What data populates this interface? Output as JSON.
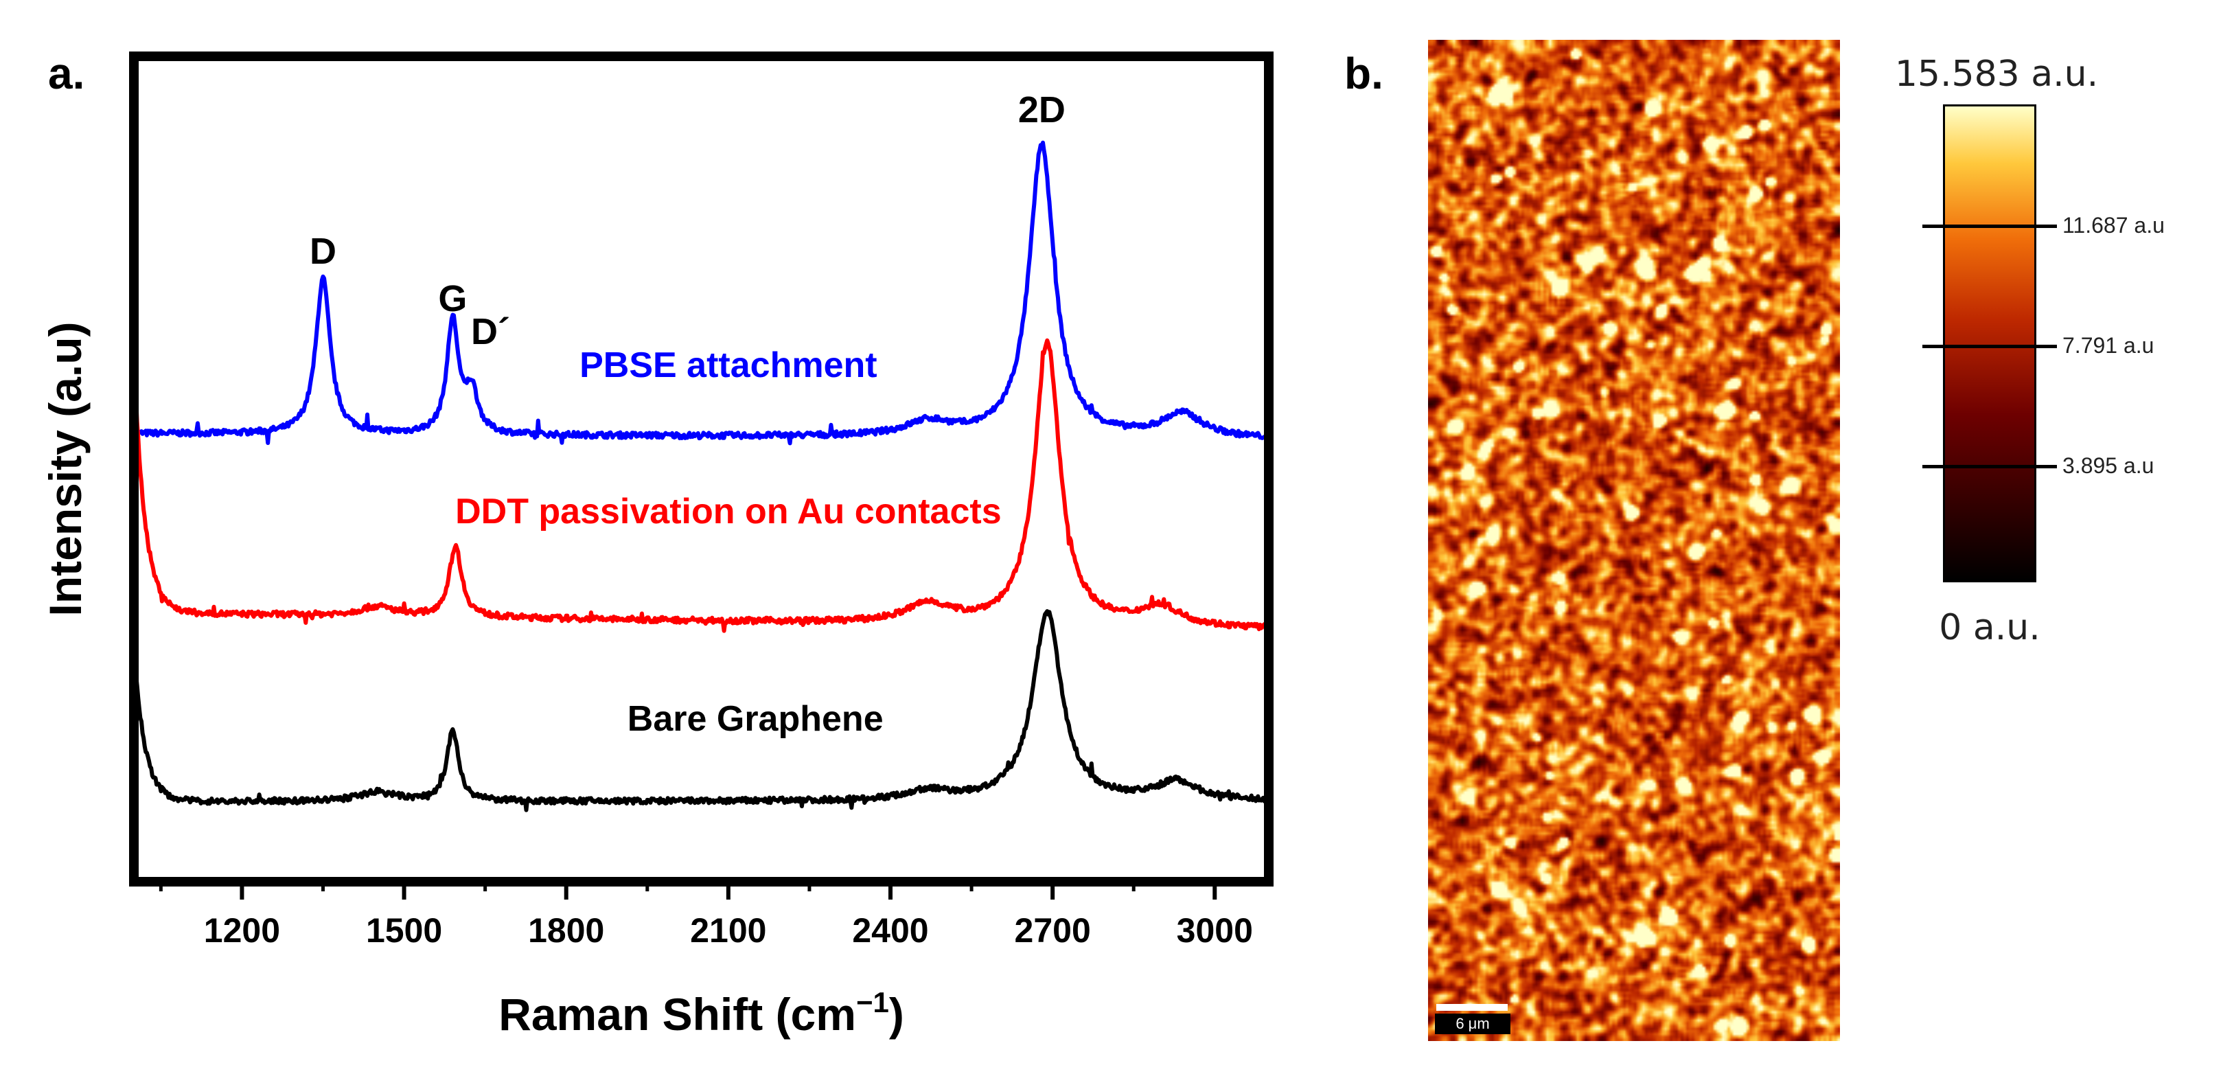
{
  "panels": {
    "a": "a.",
    "b": "b."
  },
  "chart_data": {
    "type": "line",
    "ylabel": "Intensity (a.u)",
    "xlabel_main": "Raman Shift (cm",
    "xlabel_sup": "−1",
    "xlabel_close": ")",
    "xlim": [
      1000,
      3100
    ],
    "xticks": [
      1200,
      1500,
      1800,
      2100,
      2400,
      2700,
      3000
    ],
    "xtick_labels": [
      "1200",
      "1500",
      "1800",
      "2100",
      "2400",
      "2700",
      "3000"
    ],
    "peak_labels": [
      {
        "text": "D",
        "x": 1350,
        "y": 0.86
      },
      {
        "text": "G",
        "x": 1590,
        "y": 0.76
      },
      {
        "text": "D´",
        "x": 1660,
        "y": 0.69
      },
      {
        "text": "2D",
        "x": 2680,
        "y": 1.16
      }
    ],
    "series": [
      {
        "name": "PBSE attachment",
        "color": "#0000ff",
        "baseline": 0.5,
        "slope": 0.012,
        "start_spike": 0.0,
        "peaks": [
          [
            1350,
            0.33,
            16
          ],
          [
            1590,
            0.24,
            13
          ],
          [
            1625,
            0.09,
            14
          ],
          [
            2680,
            0.62,
            28
          ],
          [
            2940,
            0.05,
            45
          ],
          [
            2470,
            0.03,
            50
          ]
        ]
      },
      {
        "name": "DDT passivation on Au contacts",
        "color": "#ff0000",
        "baseline": 0.12,
        "slope": 0.035,
        "start_spike": 0.55,
        "peaks": [
          [
            1595,
            0.15,
            14
          ],
          [
            1450,
            0.02,
            40
          ],
          [
            2690,
            0.6,
            28
          ],
          [
            2900,
            0.04,
            45
          ],
          [
            2470,
            0.04,
            50
          ]
        ]
      },
      {
        "name": "Bare Graphene",
        "color": "#000000",
        "baseline": -0.28,
        "slope": 0.0,
        "start_spike": 0.33,
        "peaks": [
          [
            1590,
            0.15,
            13
          ],
          [
            1450,
            0.02,
            40
          ],
          [
            2690,
            0.4,
            32
          ],
          [
            2930,
            0.04,
            45
          ],
          [
            2470,
            0.02,
            50
          ]
        ]
      }
    ],
    "series_label_positions": [
      {
        "x": 2100,
        "y": 0.62
      },
      {
        "x": 2100,
        "y": 0.31
      },
      {
        "x": 2150,
        "y": -0.13
      }
    ],
    "ylim": [
      -0.45,
      1.3
    ]
  },
  "map": {
    "scale_bar_label": "6 μm",
    "colorbar": {
      "max_label": "15.583 a.u.",
      "min_label": "0 a.u.",
      "ticks": [
        {
          "value": 11.687,
          "label": "11.687 a.u"
        },
        {
          "value": 7.791,
          "label": "7.791 a.u"
        },
        {
          "value": 3.895,
          "label": "3.895 a.u"
        }
      ],
      "max_value": 15.583
    }
  }
}
